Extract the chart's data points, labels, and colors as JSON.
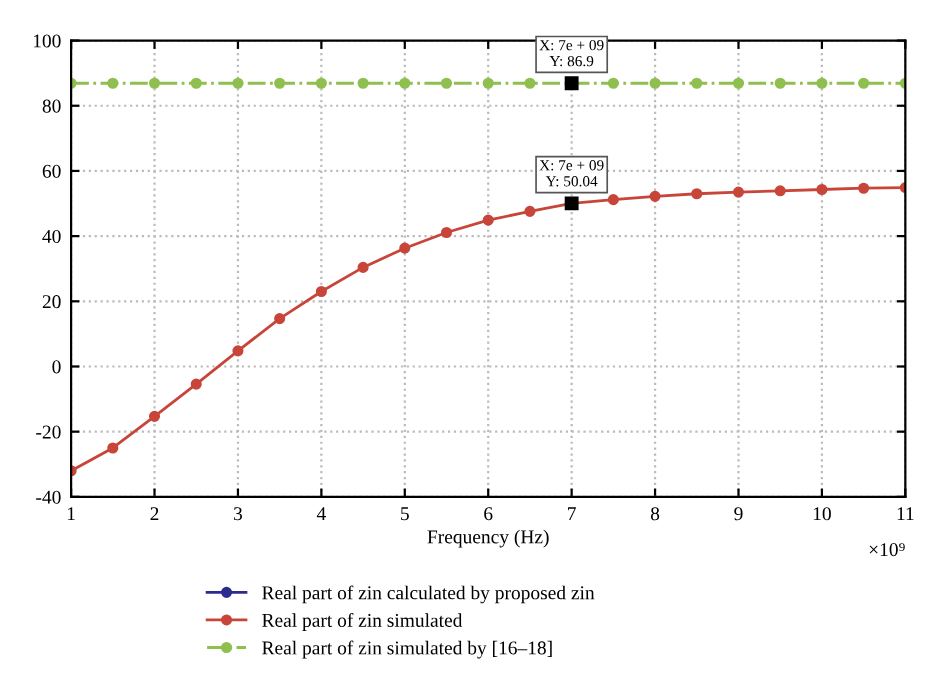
{
  "chart_data": {
    "type": "line",
    "xlabel": "Frequency (Hz)",
    "x": [
      1,
      1.5,
      2,
      2.5,
      3,
      3.5,
      4,
      4.5,
      5,
      5.5,
      6,
      6.5,
      7,
      7.5,
      8,
      8.5,
      9,
      9.5,
      10,
      10.5,
      11
    ],
    "series": [
      {
        "name": "Real part of zin calculated by proposed zin",
        "color": "#2b2b8f",
        "marker": "circle",
        "line_style": "solid",
        "values": [
          null,
          null,
          null,
          null,
          null,
          null,
          null,
          null,
          null,
          null,
          null,
          null,
          null,
          null,
          null,
          null,
          null,
          null,
          null,
          null,
          null
        ]
      },
      {
        "name": "Real part of zin simulated",
        "color": "#c8453a",
        "marker": "circle",
        "line_style": "solid",
        "values": [
          -32,
          -25,
          -15.3,
          -5.4,
          4.8,
          14.7,
          23,
          30.4,
          36.3,
          41.1,
          44.9,
          47.6,
          50.04,
          51.2,
          52.2,
          53,
          53.5,
          53.9,
          54.3,
          54.7,
          54.9
        ]
      },
      {
        "name": "Real part of zin simulated by [16–18]",
        "color": "#8fbf4f",
        "marker": "circle",
        "line_style": "dashed",
        "values": [
          86.9,
          86.9,
          86.9,
          86.9,
          86.9,
          86.9,
          86.9,
          86.9,
          86.9,
          86.9,
          86.9,
          86.9,
          86.9,
          86.9,
          86.9,
          86.9,
          86.9,
          86.9,
          86.9,
          86.9,
          86.9
        ]
      }
    ],
    "xlim": [
      1,
      11
    ],
    "xticks": [
      1,
      2,
      3,
      4,
      5,
      6,
      7,
      8,
      9,
      10,
      11
    ],
    "ylim": [
      -40,
      100
    ],
    "yticks": [
      -40,
      -20,
      0,
      20,
      40,
      60,
      80,
      100
    ],
    "annotations": [
      {
        "text": "X: 7e + 09\nY: 86.9",
        "x": 7,
        "y": 86.9
      },
      {
        "text": "X: 7e + 09\nY: 50.04",
        "x": 7,
        "y": 50.04
      },
      "×10⁹"
    ],
    "grid": true,
    "legend": "bottom left"
  }
}
